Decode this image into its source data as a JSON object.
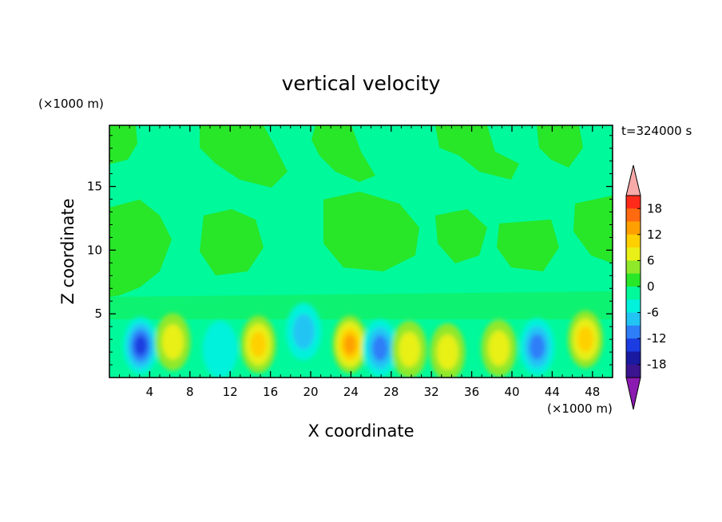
{
  "figure": {
    "title": "vertical velocity",
    "time_label": "t=324000 s",
    "xlabel": "X coordinate",
    "ylabel": "Z coordinate",
    "x_unit": "(×1000 m)",
    "y_unit": "(×1000 m)"
  },
  "chart_data": {
    "type": "heatmap",
    "title": "vertical velocity",
    "xlabel": "X coordinate",
    "ylabel": "Z coordinate",
    "x_unit": "(×1000 m)",
    "y_unit": "(×1000 m)",
    "annotation": "t=324000 s",
    "xlim": [
      0,
      50
    ],
    "ylim": [
      0,
      19.8
    ],
    "x_ticks": [
      4,
      8,
      12,
      16,
      20,
      24,
      28,
      32,
      36,
      40,
      44,
      48
    ],
    "y_ticks": [
      5,
      10,
      15
    ],
    "colorbar": {
      "levels": [
        -21,
        -18,
        -15,
        -12,
        -9,
        -6,
        -3,
        0,
        3,
        6,
        9,
        12,
        15,
        18,
        21
      ],
      "tick_labels": [
        -18,
        -12,
        -6,
        0,
        6,
        12,
        18
      ],
      "colors": [
        "#7a1aa8",
        "#3b1490",
        "#1a1aa0",
        "#1a3ce0",
        "#2e7ef8",
        "#22c4f4",
        "#00f2dc",
        "#00f99a",
        "#28e628",
        "#8fe82a",
        "#e8f018",
        "#ffd000",
        "#ffa000",
        "#ff6a10",
        "#ff2a1a",
        "#e01010"
      ],
      "extend_low_color": "#8a1ab0",
      "extend_high_color": "#f8aaa8"
    },
    "features": [
      {
        "x": 3.1,
        "z": 2.5,
        "value": -12
      },
      {
        "x": 6.3,
        "z": 2.8,
        "value": 6
      },
      {
        "x": 11.0,
        "z": 2.2,
        "value": -3
      },
      {
        "x": 14.8,
        "z": 2.6,
        "value": 9
      },
      {
        "x": 19.3,
        "z": 3.6,
        "value": -6
      },
      {
        "x": 23.9,
        "z": 2.6,
        "value": 12
      },
      {
        "x": 26.9,
        "z": 2.3,
        "value": -9
      },
      {
        "x": 29.8,
        "z": 2.2,
        "value": 6
      },
      {
        "x": 33.6,
        "z": 2.0,
        "value": 6
      },
      {
        "x": 38.7,
        "z": 2.3,
        "value": 6
      },
      {
        "x": 42.5,
        "z": 2.4,
        "value": -9
      },
      {
        "x": 47.3,
        "z": 3.0,
        "value": 9
      }
    ]
  }
}
